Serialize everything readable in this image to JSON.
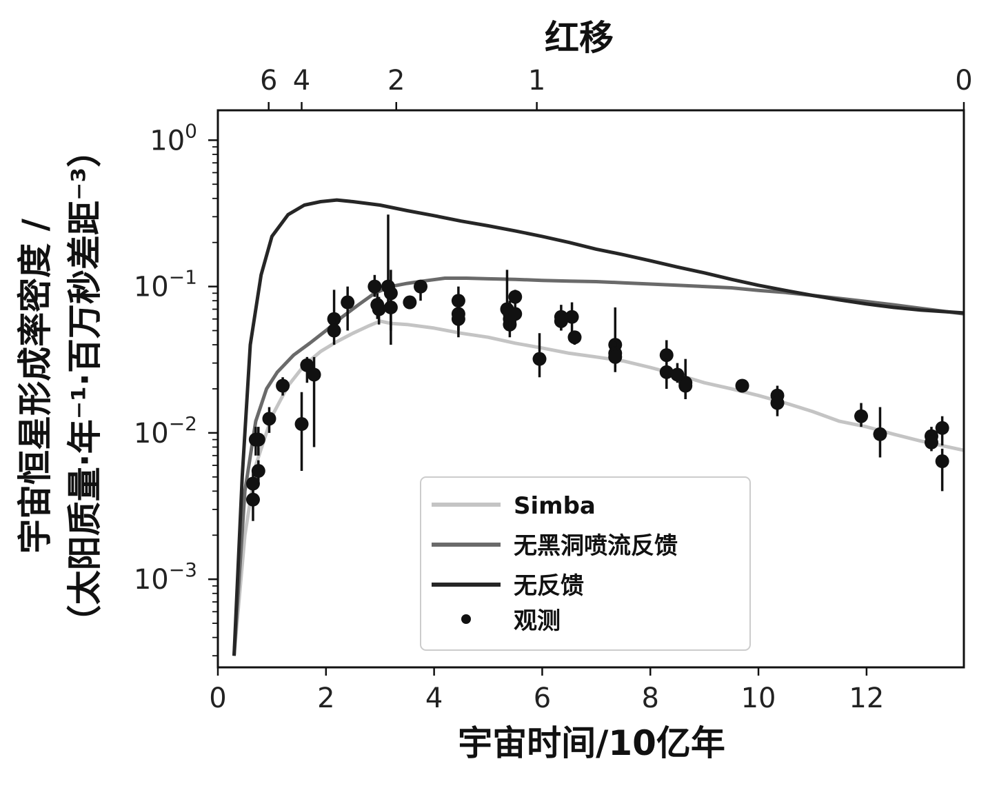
{
  "chart_data": {
    "type": "line",
    "xlabel": "宇宙时间/10亿年",
    "ylabel_line1": "宇宙恒星形成率密度 /",
    "ylabel_line2": "（太阳质量·年⁻¹·百万秒差距⁻³）",
    "top_axis_label": "红移",
    "xlim": [
      0,
      13.8
    ],
    "ylim": [
      0.00025,
      1.6
    ],
    "y_scale": "log",
    "x_ticks": [
      0,
      2,
      4,
      6,
      8,
      10,
      12
    ],
    "x_tick_labels": [
      "0",
      "2",
      "4",
      "6",
      "8",
      "10",
      "12"
    ],
    "y_ticks": [
      0.001,
      0.01,
      0.1,
      1
    ],
    "y_tick_labels": [
      {
        "base": "10",
        "exp": "−3"
      },
      {
        "base": "10",
        "exp": "−2"
      },
      {
        "base": "10",
        "exp": "−1"
      },
      {
        "base": "10",
        "exp": "0"
      }
    ],
    "top_ticks": [
      {
        "label": "6",
        "x": 0.94
      },
      {
        "label": "4",
        "x": 1.55
      },
      {
        "label": "2",
        "x": 3.3
      },
      {
        "label": "1",
        "x": 5.9
      },
      {
        "label": "0",
        "x": 13.8
      }
    ],
    "grid": false,
    "legend_position": "lower-center",
    "series": [
      {
        "name": "Simba",
        "color": "#c4c4c4",
        "x": [
          0.3,
          0.5,
          0.7,
          1.0,
          1.3,
          1.6,
          1.9,
          2.2,
          2.5,
          2.8,
          3.0,
          3.2,
          3.5,
          4.0,
          4.5,
          5.0,
          5.5,
          6.0,
          6.5,
          7.0,
          7.5,
          8.0,
          8.5,
          9.0,
          9.5,
          10.0,
          10.5,
          11.0,
          11.5,
          12.0,
          12.5,
          13.0,
          13.8
        ],
        "y": [
          0.0003,
          0.002,
          0.006,
          0.013,
          0.021,
          0.029,
          0.036,
          0.042,
          0.048,
          0.054,
          0.058,
          0.056,
          0.055,
          0.052,
          0.048,
          0.045,
          0.041,
          0.038,
          0.035,
          0.033,
          0.031,
          0.028,
          0.025,
          0.022,
          0.02,
          0.018,
          0.016,
          0.014,
          0.012,
          0.011,
          0.0098,
          0.0088,
          0.0076
        ]
      },
      {
        "name": "无黑洞喷流反馈",
        "color": "#6a6a6a",
        "x": [
          0.3,
          0.5,
          0.7,
          0.9,
          1.1,
          1.4,
          1.7,
          2.0,
          2.3,
          2.6,
          2.9,
          3.2,
          3.5,
          3.8,
          4.2,
          4.6,
          5.0,
          5.5,
          6.0,
          6.5,
          7.0,
          7.5,
          8.0,
          8.5,
          9.0,
          9.5,
          10.0,
          10.5,
          11.0,
          11.5,
          12.0,
          12.5,
          13.0,
          13.8
        ],
        "y": [
          0.0003,
          0.004,
          0.012,
          0.02,
          0.026,
          0.034,
          0.041,
          0.05,
          0.062,
          0.075,
          0.09,
          0.1,
          0.105,
          0.109,
          0.114,
          0.114,
          0.113,
          0.112,
          0.11,
          0.109,
          0.108,
          0.106,
          0.104,
          0.102,
          0.1,
          0.098,
          0.094,
          0.091,
          0.087,
          0.083,
          0.079,
          0.075,
          0.071,
          0.065
        ]
      },
      {
        "name": "无反馈",
        "color": "#262626",
        "x": [
          0.3,
          0.45,
          0.6,
          0.8,
          1.0,
          1.3,
          1.6,
          1.9,
          2.2,
          2.5,
          3.0,
          3.5,
          4.0,
          4.5,
          5.0,
          5.5,
          6.0,
          6.5,
          7.0,
          7.5,
          8.0,
          8.5,
          9.0,
          9.5,
          10.0,
          10.5,
          11.0,
          11.5,
          12.0,
          12.5,
          13.0,
          13.8
        ],
        "y": [
          0.0003,
          0.005,
          0.04,
          0.12,
          0.22,
          0.31,
          0.36,
          0.38,
          0.39,
          0.38,
          0.36,
          0.33,
          0.305,
          0.28,
          0.26,
          0.24,
          0.22,
          0.2,
          0.18,
          0.165,
          0.15,
          0.136,
          0.124,
          0.112,
          0.102,
          0.094,
          0.087,
          0.081,
          0.076,
          0.072,
          0.069,
          0.066
        ]
      },
      {
        "name": "观测",
        "color": "#111111",
        "type": "scatter",
        "x": [
          0.65,
          0.65,
          0.7,
          0.75,
          0.75,
          0.95,
          1.2,
          1.55,
          1.65,
          1.78,
          2.15,
          2.15,
          2.4,
          2.9,
          2.95,
          2.98,
          3.15,
          3.2,
          3.2,
          3.55,
          3.75,
          4.45,
          4.45,
          4.45,
          5.35,
          5.4,
          5.4,
          5.4,
          5.5,
          5.5,
          5.95,
          6.35,
          6.35,
          6.55,
          6.6,
          7.35,
          7.35,
          7.35,
          8.3,
          8.3,
          8.5,
          8.65,
          8.65,
          9.7,
          10.35,
          10.35,
          11.9,
          12.25,
          13.2,
          13.2,
          13.4,
          13.4
        ],
        "y": [
          0.0035,
          0.0045,
          0.009,
          0.0055,
          0.009,
          0.0125,
          0.021,
          0.0115,
          0.029,
          0.025,
          0.06,
          0.05,
          0.078,
          0.1,
          0.075,
          0.07,
          0.1,
          0.09,
          0.072,
          0.078,
          0.1,
          0.08,
          0.065,
          0.06,
          0.07,
          0.06,
          0.055,
          0.065,
          0.085,
          0.065,
          0.032,
          0.062,
          0.058,
          0.062,
          0.045,
          0.04,
          0.035,
          0.033,
          0.034,
          0.026,
          0.025,
          0.022,
          0.021,
          0.021,
          0.018,
          0.016,
          0.013,
          0.0098,
          0.0095,
          0.0086,
          0.0108,
          0.0064
        ],
        "y_low": [
          0.0025,
          0.0035,
          0.007,
          0.0045,
          0.007,
          0.01,
          0.018,
          0.0055,
          0.022,
          0.008,
          0.05,
          0.04,
          0.05,
          0.085,
          0.06,
          0.055,
          0.07,
          0.05,
          0.04,
          0.07,
          0.08,
          0.05,
          0.05,
          0.045,
          0.05,
          0.05,
          0.045,
          0.05,
          0.075,
          0.055,
          0.024,
          0.05,
          0.05,
          0.045,
          0.04,
          0.026,
          0.028,
          0.028,
          0.022,
          0.02,
          0.022,
          0.017,
          0.017,
          0.019,
          0.014,
          0.013,
          0.011,
          0.0068,
          0.0085,
          0.0075,
          0.0082,
          0.004
        ],
        "y_high": [
          0.0045,
          0.0055,
          0.011,
          0.0065,
          0.011,
          0.015,
          0.024,
          0.019,
          0.033,
          0.033,
          0.095,
          0.06,
          0.1,
          0.12,
          0.09,
          0.085,
          0.31,
          0.13,
          0.1,
          0.085,
          0.105,
          0.1,
          0.08,
          0.075,
          0.13,
          0.08,
          0.065,
          0.08,
          0.095,
          0.075,
          0.048,
          0.075,
          0.065,
          0.078,
          0.05,
          0.072,
          0.042,
          0.038,
          0.043,
          0.032,
          0.03,
          0.032,
          0.027,
          0.023,
          0.021,
          0.019,
          0.016,
          0.015,
          0.011,
          0.0098,
          0.013,
          0.0078
        ]
      }
    ]
  }
}
